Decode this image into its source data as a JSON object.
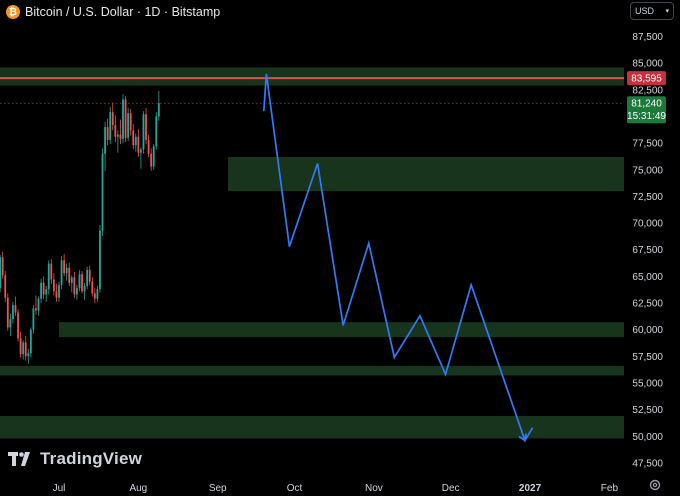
{
  "header": {
    "title": "Bitcoin / U.S. Dollar · 1D · Bitstamp",
    "icon": "bitcoin-icon",
    "currency_selector": "USD"
  },
  "branding": {
    "logo_text": "TradingView"
  },
  "colors": {
    "background": "#000000",
    "candle_up": "#26a69a",
    "candle_down": "#ef5350",
    "zone_fill": "#1b3a20",
    "resistance_line": "#d9534f",
    "projection_line": "#2f7bf5",
    "last_price_badge": "#1b7a3a",
    "resistance_badge": "#c62f3b"
  },
  "chart_data": {
    "type": "candlestick",
    "instrument": "Bitcoin / U.S. Dollar",
    "interval": "1D",
    "exchange": "Bitstamp",
    "y_axis": {
      "ticks": [
        "87,500",
        "85,000",
        "82,500",
        "80,000",
        "77,500",
        "75,000",
        "72,500",
        "70,000",
        "67,500",
        "65,000",
        "62,500",
        "60,000",
        "57,500",
        "55,000",
        "52,500",
        "50,000",
        "47,500"
      ],
      "tick_values": [
        87500,
        85000,
        82500,
        80000,
        77500,
        75000,
        72500,
        70000,
        67500,
        65000,
        62500,
        60000,
        57500,
        55000,
        52500,
        50000,
        47500
      ],
      "range": [
        46000,
        90000
      ]
    },
    "x_axis": {
      "labels": [
        "Jul",
        "Aug",
        "Sep",
        "Oct",
        "Nov",
        "Dec",
        "2027",
        "Feb"
      ],
      "positions_index": [
        0,
        31,
        62,
        92,
        123,
        153,
        184,
        215
      ]
    },
    "price_labels": {
      "resistance": "83,595",
      "last_price": "81,240",
      "countdown": "15:31:49"
    },
    "resistance_level": 83595,
    "last_price_level": 81240,
    "zones": [
      {
        "low": 82900,
        "high": 84600,
        "start_index": -25
      },
      {
        "low": 73000,
        "high": 76200,
        "start_index": 66
      },
      {
        "low": 59300,
        "high": 60700,
        "start_index": 0
      },
      {
        "low": 55700,
        "high": 56600,
        "start_index": -25
      },
      {
        "low": 49800,
        "high": 51900,
        "start_index": -25
      }
    ],
    "projection_path": [
      [
        80,
        80500
      ],
      [
        81,
        84000
      ],
      [
        90,
        67800
      ],
      [
        101,
        75600
      ],
      [
        111,
        60400
      ],
      [
        121,
        68100
      ],
      [
        131,
        57400
      ],
      [
        141,
        61300
      ],
      [
        151,
        55800
      ],
      [
        161,
        64200
      ],
      [
        182,
        49600
      ],
      [
        185,
        50800
      ]
    ],
    "candles": [
      [
        -30,
        62500,
        66000,
        61200,
        64800
      ],
      [
        -29,
        64800,
        66200,
        63600,
        64100
      ],
      [
        -28,
        64100,
        64800,
        60900,
        61500
      ],
      [
        -27,
        61500,
        63400,
        61000,
        62800
      ],
      [
        -26,
        62800,
        64600,
        62200,
        64000
      ],
      [
        -25,
        64000,
        64800,
        62500,
        63000
      ],
      [
        -24,
        63000,
        64500,
        62500,
        63900
      ],
      [
        -23,
        63900,
        67000,
        63500,
        66800
      ],
      [
        -22,
        66800,
        67300,
        64800,
        65100
      ],
      [
        -21,
        65100,
        65500,
        62600,
        63000
      ],
      [
        -20,
        63000,
        63400,
        59900,
        60200
      ],
      [
        -19,
        60200,
        61500,
        59400,
        61000
      ],
      [
        -18,
        61000,
        62600,
        60600,
        62300
      ],
      [
        -17,
        62300,
        63100,
        61300,
        61600
      ],
      [
        -16,
        61600,
        61900,
        58900,
        59200
      ],
      [
        -15,
        59200,
        59800,
        57400,
        57700
      ],
      [
        -14,
        57700,
        59000,
        57200,
        58800
      ],
      [
        -13,
        58800,
        59400,
        57100,
        57500
      ],
      [
        -12,
        57500,
        58200,
        56800,
        57800
      ],
      [
        -11,
        57800,
        60200,
        57400,
        60000
      ],
      [
        -10,
        60000,
        62300,
        59600,
        62000
      ],
      [
        -9,
        62000,
        63200,
        61400,
        61800
      ],
      [
        -8,
        61800,
        63100,
        61300,
        62900
      ],
      [
        -7,
        62900,
        64800,
        62500,
        64400
      ],
      [
        -6,
        64400,
        65000,
        62900,
        63300
      ],
      [
        -5,
        63300,
        64100,
        62600,
        63800
      ],
      [
        -4,
        63800,
        66500,
        63300,
        66200
      ],
      [
        -3,
        66200,
        66600,
        64300,
        64700
      ],
      [
        -2,
        64700,
        65300,
        63200,
        63600
      ],
      [
        -1,
        63600,
        64300,
        62600,
        63000
      ],
      [
        0,
        63000,
        64500,
        62600,
        64200
      ],
      [
        1,
        64200,
        66900,
        63800,
        66500
      ],
      [
        2,
        66500,
        67100,
        65000,
        65300
      ],
      [
        3,
        65300,
        66200,
        64600,
        65800
      ],
      [
        4,
        65800,
        66300,
        64100,
        64400
      ],
      [
        5,
        64400,
        65100,
        63500,
        64900
      ],
      [
        6,
        64900,
        65400,
        63000,
        63300
      ],
      [
        7,
        63300,
        64200,
        62800,
        63900
      ],
      [
        8,
        63900,
        65600,
        63600,
        65200
      ],
      [
        9,
        65200,
        65500,
        63400,
        63600
      ],
      [
        10,
        63600,
        64400,
        62800,
        64100
      ],
      [
        11,
        64100,
        65900,
        63800,
        65600
      ],
      [
        12,
        65600,
        66000,
        64200,
        64500
      ],
      [
        13,
        64500,
        64900,
        63100,
        63400
      ],
      [
        14,
        63400,
        63900,
        62500,
        62900
      ],
      [
        15,
        62900,
        64100,
        62600,
        63800
      ],
      [
        16,
        63800,
        69800,
        63500,
        69300
      ],
      [
        17,
        69300,
        77000,
        68800,
        76500
      ],
      [
        18,
        76500,
        79500,
        74900,
        79000
      ],
      [
        19,
        79000,
        79800,
        77300,
        77800
      ],
      [
        20,
        77800,
        80900,
        77400,
        80400
      ],
      [
        21,
        80400,
        81300,
        78700,
        79200
      ],
      [
        22,
        79200,
        80100,
        77600,
        78100
      ],
      [
        23,
        78100,
        78700,
        76600,
        78300
      ],
      [
        24,
        78300,
        79700,
        77400,
        77900
      ],
      [
        25,
        77900,
        82100,
        77500,
        81600
      ],
      [
        26,
        81600,
        81900,
        77600,
        78000
      ],
      [
        27,
        78000,
        80800,
        77700,
        80300
      ],
      [
        28,
        80300,
        80700,
        78200,
        78700
      ],
      [
        29,
        78700,
        79300,
        76900,
        77300
      ],
      [
        30,
        77300,
        78400,
        76700,
        78100
      ],
      [
        31,
        78100,
        78800,
        76200,
        76600
      ],
      [
        32,
        76600,
        77100,
        75100,
        76900
      ],
      [
        33,
        76900,
        80500,
        76500,
        80200
      ],
      [
        34,
        80200,
        80800,
        77400,
        77800
      ],
      [
        35,
        77800,
        78300,
        76200,
        76500
      ],
      [
        36,
        76500,
        77000,
        74900,
        75300
      ],
      [
        37,
        75300,
        77400,
        75000,
        77200
      ],
      [
        38,
        77200,
        80400,
        76900,
        80000
      ],
      [
        39,
        80000,
        82400,
        79600,
        81240
      ]
    ]
  }
}
